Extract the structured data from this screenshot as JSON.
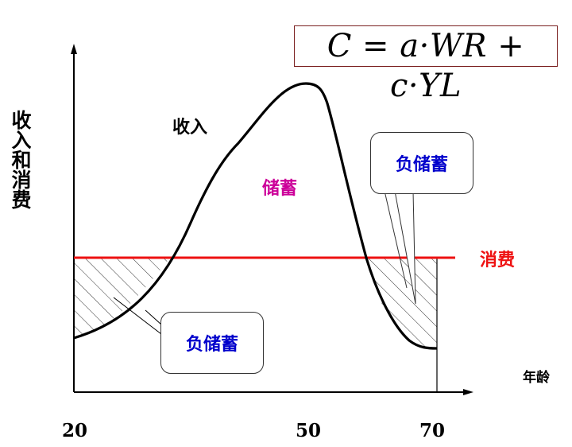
{
  "formula": "C = a·WR + c·YL",
  "chart_data": {
    "type": "line",
    "title": "",
    "xlabel": "年龄",
    "ylabel": "收入和消费",
    "x_ticks": [
      "20",
      "50",
      "70"
    ],
    "series": [
      {
        "name": "收入",
        "color": "#000000"
      },
      {
        "name": "消费",
        "color": "#ee1111"
      }
    ],
    "annotations": {
      "savings": "储蓄",
      "dissaving_left": "负储蓄",
      "dissaving_right": "负储蓄"
    },
    "colors": {
      "income": "#000000",
      "consumption": "#ee1111",
      "savings_label": "#cc0099",
      "dissaving_label": "#0000cc"
    }
  }
}
